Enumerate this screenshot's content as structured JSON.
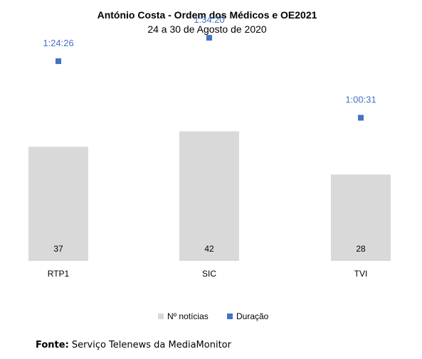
{
  "chart_data": {
    "type": "bar",
    "title": "António Costa - Ordem dos Médicos e OE2021",
    "subtitle": "24 a 30 de Agosto de 2020",
    "categories": [
      "RTP1",
      "SIC",
      "TVI"
    ],
    "series": [
      {
        "name": "Nº notícias",
        "type": "bar",
        "color": "#d9d9d9",
        "values": [
          37,
          42,
          28
        ]
      },
      {
        "name": "Duração",
        "type": "scatter",
        "color": "#4472c4",
        "values_seconds": [
          5066,
          5660,
          3631
        ],
        "labels": [
          "1:24:26",
          "1:34:20",
          "1:00:31"
        ]
      }
    ],
    "ylim": [
      0,
      50
    ],
    "duration_ylim_seconds": [
      0,
      6600
    ],
    "grid": false,
    "legend": "bottom",
    "label_color": "#4472c4"
  },
  "source": {
    "label": "Fonte:",
    "text": " Serviço Telenews da MediaMonitor"
  }
}
